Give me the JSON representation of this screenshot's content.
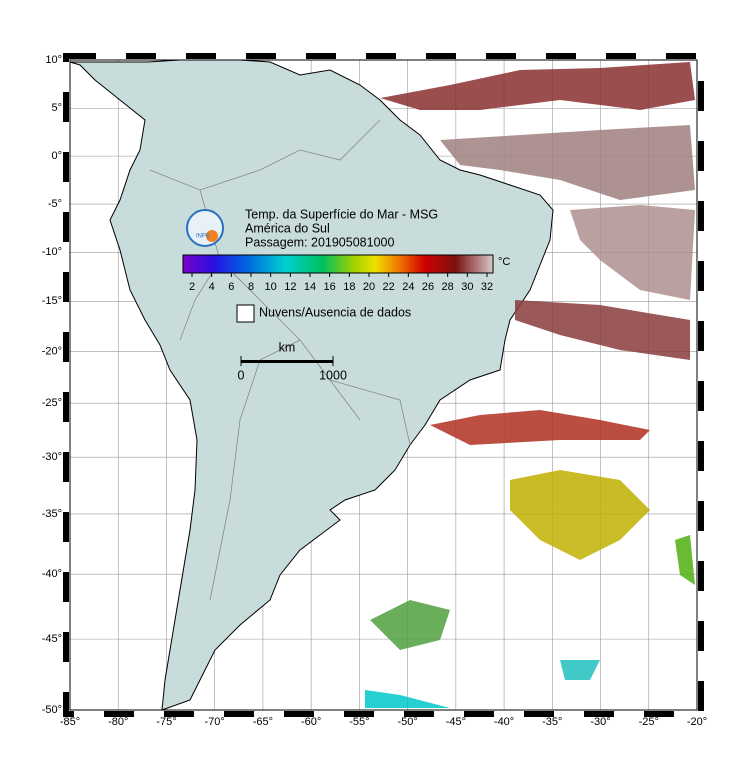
{
  "header": {
    "title_lines": [
      "Temp. da Superfície do Mar - MSG",
      "América do Sul",
      "Passagem: 201905081000"
    ],
    "logo": "INPE"
  },
  "colorbar": {
    "ticks": [
      2,
      4,
      6,
      8,
      10,
      12,
      14,
      16,
      18,
      20,
      22,
      24,
      26,
      28,
      30,
      32
    ],
    "unit": "°C"
  },
  "legend": {
    "label": "Nuvens/Ausencia de dados"
  },
  "scale_bar": {
    "unit": "km",
    "ticks": [
      0,
      1000
    ]
  },
  "map": {
    "lon_ticks": [
      {
        "value": -85,
        "label": "-85°"
      },
      {
        "value": -80,
        "label": "-80°"
      },
      {
        "value": -75,
        "label": "-75°"
      },
      {
        "value": -70,
        "label": "-70°"
      },
      {
        "value": -65,
        "label": "-65°"
      },
      {
        "value": -60,
        "label": "-60°"
      },
      {
        "value": -55,
        "label": "-55°"
      },
      {
        "value": -50,
        "label": "-50°"
      },
      {
        "value": -45,
        "label": "-45°"
      },
      {
        "value": -40,
        "label": "-40°"
      },
      {
        "value": -35,
        "label": "-35°"
      },
      {
        "value": -30,
        "label": "-30°"
      },
      {
        "value": -25,
        "label": "-25°"
      },
      {
        "value": -20,
        "label": "-20°"
      }
    ],
    "lat_ticks": [
      {
        "value": 10,
        "label": "10°"
      },
      {
        "value": 5,
        "label": "5°"
      },
      {
        "value": 0,
        "label": "0°"
      },
      {
        "value": -5,
        "label": "-5°"
      },
      {
        "value": -10,
        "label": "-10°"
      },
      {
        "value": -15,
        "label": "-15°"
      },
      {
        "value": -20,
        "label": "-20°"
      },
      {
        "value": -25,
        "label": "-25°"
      },
      {
        "value": -30,
        "label": "-30°"
      },
      {
        "value": -35,
        "label": "-35°"
      },
      {
        "value": -40,
        "label": "-40°"
      },
      {
        "value": -45,
        "label": "-45°"
      },
      {
        "value": -50,
        "label": "-50°"
      }
    ]
  }
}
